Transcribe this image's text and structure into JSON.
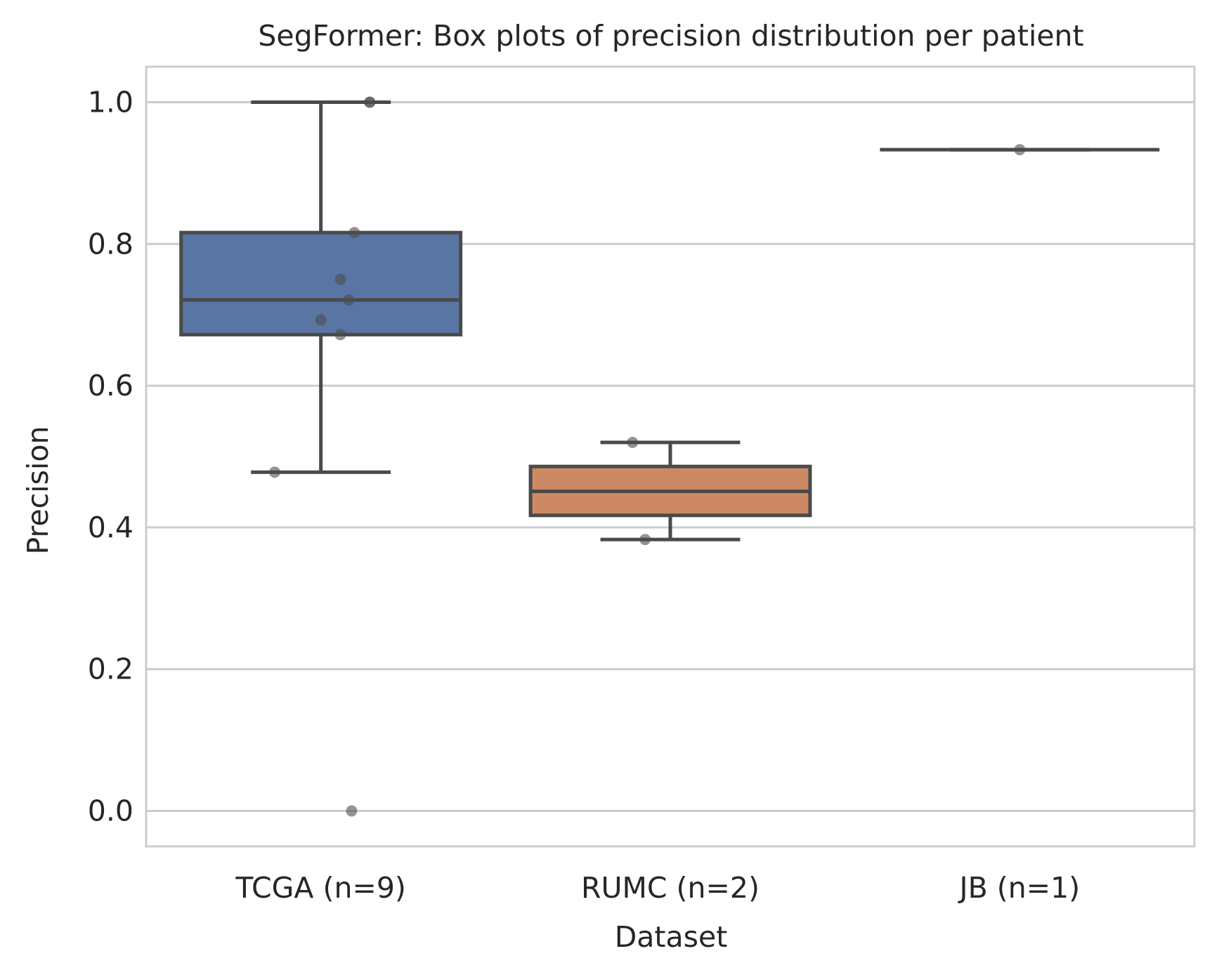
{
  "chart_data": {
    "type": "box",
    "title": "SegFormer: Box plots of precision distribution per patient",
    "xlabel": "Dataset",
    "ylabel": "Precision",
    "ylim": [
      -0.05,
      1.05
    ],
    "yticks": [
      0.0,
      0.2,
      0.4,
      0.6,
      0.8,
      1.0
    ],
    "ytick_labels": [
      "0.0",
      "0.2",
      "0.4",
      "0.6",
      "0.8",
      "1.0"
    ],
    "grid": true,
    "categories": [
      "TCGA (n=9)",
      "RUMC (n=2)",
      "JB (n=1)"
    ],
    "boxes": [
      {
        "category": "TCGA (n=9)",
        "color": "#5975a4",
        "whisker_low": 0.478,
        "q1": 0.672,
        "median": 0.721,
        "q3": 0.816,
        "whisker_high": 1.0,
        "points": [
          1.0,
          1.0,
          0.816,
          0.75,
          0.721,
          0.693,
          0.672,
          0.478,
          0.0
        ]
      },
      {
        "category": "RUMC (n=2)",
        "color": "#cc8963",
        "whisker_low": 0.383,
        "q1": 0.417,
        "median": 0.451,
        "q3": 0.486,
        "whisker_high": 0.52,
        "points": [
          0.52,
          0.383
        ]
      },
      {
        "category": "JB (n=1)",
        "color": "#5f9e6e",
        "whisker_low": 0.933,
        "q1": 0.933,
        "median": 0.933,
        "q3": 0.933,
        "whisker_high": 0.933,
        "points": [
          0.933
        ]
      }
    ]
  }
}
